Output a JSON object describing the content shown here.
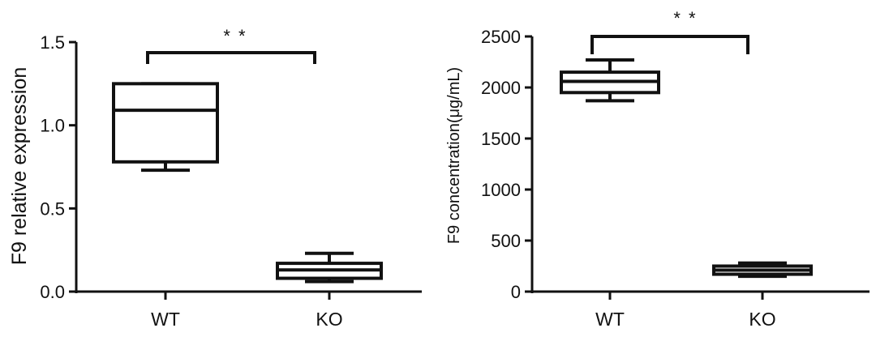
{
  "chart_data": [
    {
      "type": "boxplot",
      "ylabel": "F9 relative expression",
      "ylim": [
        0,
        1.5
      ],
      "yticks": [
        "0.0",
        "0.5",
        "1.0",
        "1.5"
      ],
      "ytick_values": [
        0,
        0.5,
        1.0,
        1.5
      ],
      "categories": [
        "WT",
        "KO"
      ],
      "boxes": [
        {
          "category": "WT",
          "min": 0.73,
          "q1": 0.78,
          "median": 1.09,
          "q3": 1.25,
          "max": 1.25
        },
        {
          "category": "KO",
          "min": 0.06,
          "q1": 0.08,
          "median": 0.13,
          "q3": 0.17,
          "max": 0.23
        }
      ],
      "significance": "* *",
      "grid": false
    },
    {
      "type": "boxplot",
      "ylabel": "F9 concentration(μg/mL)",
      "ylim": [
        0,
        2500
      ],
      "yticks": [
        "0",
        "500",
        "1000",
        "1500",
        "2000",
        "2500"
      ],
      "ytick_values": [
        0,
        500,
        1000,
        1500,
        2000,
        2500
      ],
      "categories": [
        "WT",
        "KO"
      ],
      "boxes": [
        {
          "category": "WT",
          "min": 1870,
          "q1": 1950,
          "median": 2060,
          "q3": 2150,
          "max": 2270
        },
        {
          "category": "KO",
          "min": 150,
          "q1": 170,
          "median": 210,
          "q3": 250,
          "max": 280
        }
      ],
      "significance": "* *",
      "grid": false
    }
  ]
}
